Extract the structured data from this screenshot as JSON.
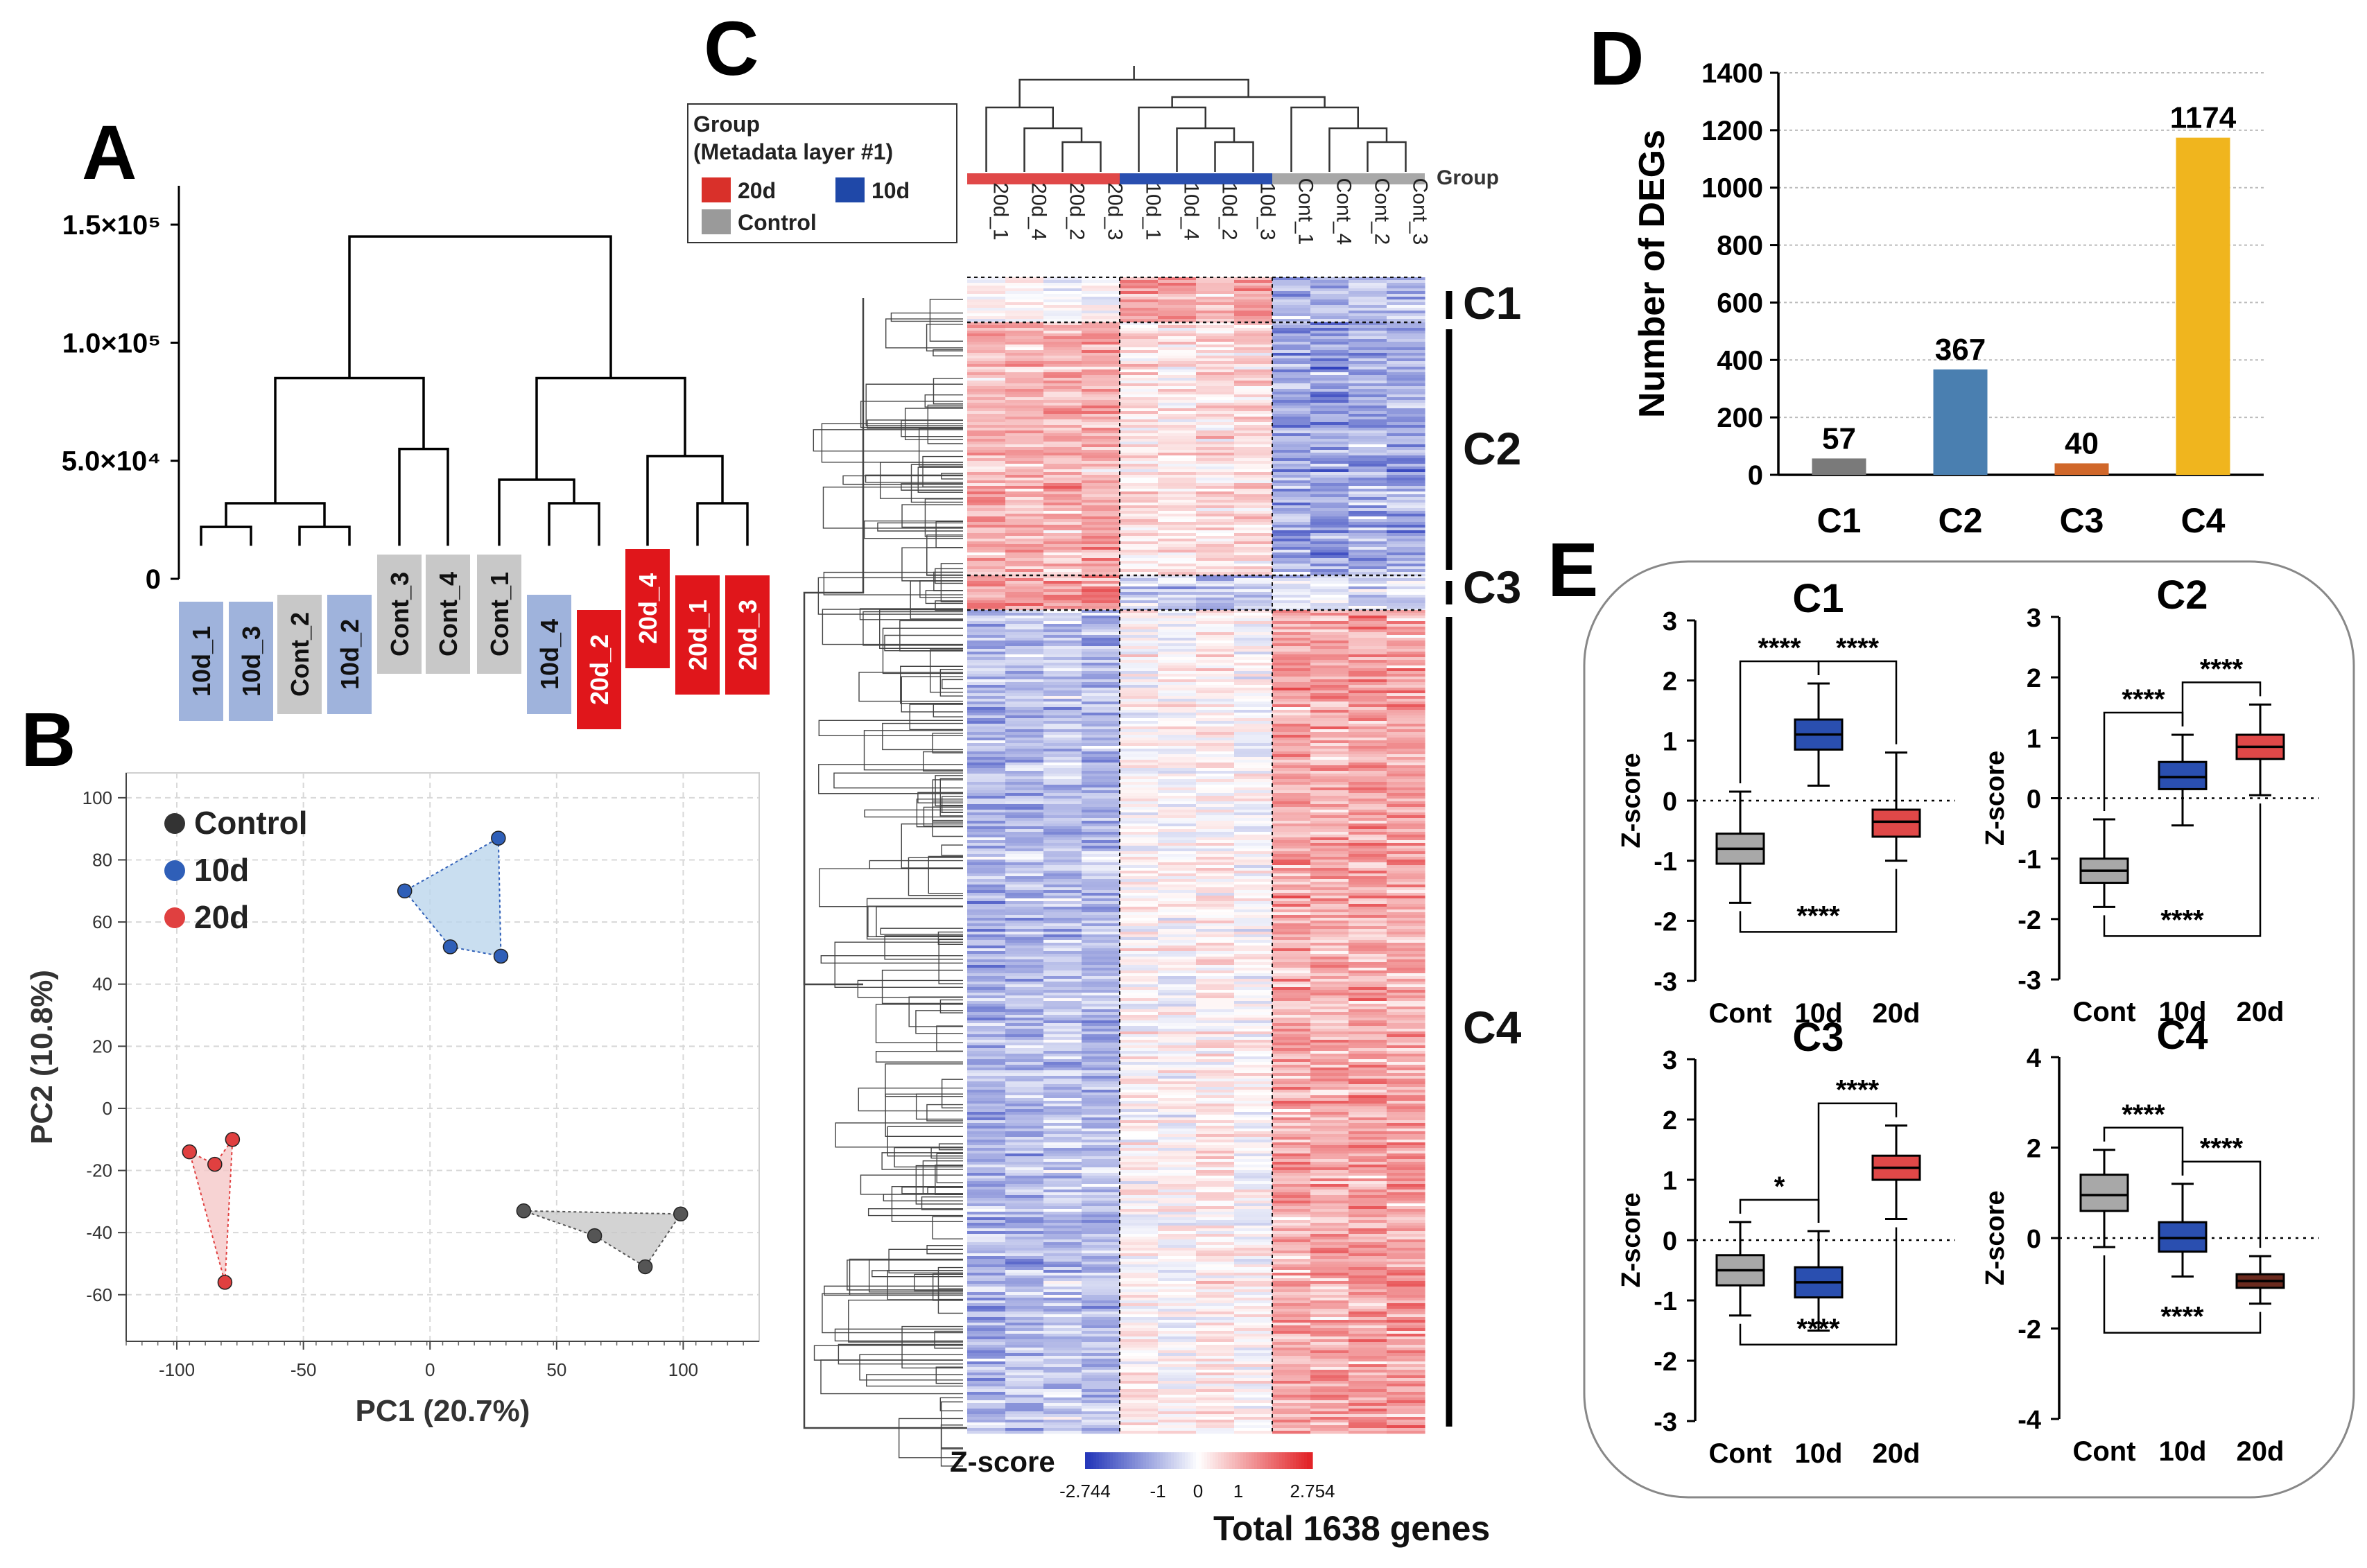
{
  "panels": {
    "A": {
      "letter": "A",
      "y_ticks": [
        {
          "label": "0",
          "value": 0
        },
        {
          "label": "5.0×10⁴",
          "value": 50000
        },
        {
          "label": "1.0×10⁵",
          "value": 100000
        },
        {
          "label": "1.5×10⁵",
          "value": 150000
        }
      ],
      "leaves": [
        {
          "label": "10d_1",
          "group": "10d"
        },
        {
          "label": "10d_3",
          "group": "10d"
        },
        {
          "label": "Cont_2",
          "group": "Control"
        },
        {
          "label": "10d_2",
          "group": "10d"
        },
        {
          "label": "Cont_3",
          "group": "Control"
        },
        {
          "label": "Cont_4",
          "group": "Control"
        },
        {
          "label": "Cont_1",
          "group": "Control"
        },
        {
          "label": "10d_4",
          "group": "10d"
        },
        {
          "label": "20d_2",
          "group": "20d"
        },
        {
          "label": "20d_4",
          "group": "20d"
        },
        {
          "label": "20d_1",
          "group": "20d"
        },
        {
          "label": "20d_3",
          "group": "20d"
        }
      ]
    },
    "B": {
      "letter": "B",
      "xlabel": "PC1 (20.7%)",
      "ylabel": "PC2 (10.8%)",
      "xlim": [
        -120,
        130
      ],
      "ylim": [
        -75,
        108
      ],
      "x_ticks": [
        -100,
        -50,
        0,
        50,
        100
      ],
      "y_ticks": [
        -60,
        -40,
        -20,
        0,
        20,
        40,
        60,
        80,
        100
      ],
      "legend": [
        {
          "label": "Control",
          "color": "#333333"
        },
        {
          "label": "10d",
          "color": "#2f5fb8"
        },
        {
          "label": "20d",
          "color": "#e04040"
        }
      ],
      "groups": [
        {
          "name": "Control",
          "color": "#555555",
          "fill": "#c8c8c8",
          "points": [
            [
              37,
              -33
            ],
            [
              65,
              -41
            ],
            [
              85,
              -51
            ],
            [
              99,
              -34
            ]
          ]
        },
        {
          "name": "10d",
          "color": "#2f5fb8",
          "fill": "#bcd6ec",
          "points": [
            [
              -10,
              70
            ],
            [
              27,
              87
            ],
            [
              28,
              49
            ],
            [
              8,
              52
            ]
          ]
        },
        {
          "name": "20d",
          "color": "#e04040",
          "fill": "#f5c8c8",
          "points": [
            [
              -95,
              -14
            ],
            [
              -78,
              -10
            ],
            [
              -85,
              -18
            ],
            [
              -81,
              -56
            ]
          ]
        }
      ]
    },
    "C": {
      "letter": "C",
      "legend_title": "Group",
      "legend_subtitle": "(Metadata layer #1)",
      "legend_items": [
        {
          "label": "20d",
          "color": "#d9302a"
        },
        {
          "label": "10d",
          "color": "#1f48a8"
        },
        {
          "label": "Control",
          "color": "#9a9a9a"
        }
      ],
      "group_track_label": "Group",
      "columns": [
        "20d_1",
        "20d_4",
        "20d_2",
        "20d_3",
        "10d_1",
        "10d_4",
        "10d_2",
        "10d_3",
        "Cont_1",
        "Cont_4",
        "Cont_2",
        "Cont_3"
      ],
      "clusters": [
        {
          "label": "C1",
          "genes": 57,
          "pattern": [
            0.1,
            0.2,
            0.0,
            0.1,
            1.2,
            1.2,
            1.1,
            1.2,
            -0.9,
            -0.8,
            -0.7,
            -0.8
          ]
        },
        {
          "label": "C2",
          "genes": 367,
          "pattern": [
            0.9,
            0.9,
            1.0,
            1.0,
            0.3,
            0.3,
            0.4,
            0.4,
            -1.2,
            -1.3,
            -1.1,
            -1.2
          ]
        },
        {
          "label": "C3",
          "genes": 40,
          "pattern": [
            1.2,
            1.1,
            1.3,
            1.4,
            -0.6,
            -0.7,
            -0.8,
            -0.6,
            -0.5,
            -0.4,
            -0.6,
            -0.5
          ]
        },
        {
          "label": "C4",
          "genes": 1174,
          "pattern": [
            -1.0,
            -0.9,
            -0.8,
            -0.9,
            0.1,
            0.0,
            0.2,
            0.0,
            1.1,
            1.0,
            1.2,
            1.1
          ]
        }
      ],
      "colorbar_title": "Z-score",
      "colorbar_ticks": [
        "-2.744",
        "-1",
        "0",
        "1",
        "2.754"
      ],
      "total_label": "Total 1638 genes"
    },
    "D": {
      "letter": "D"
    },
    "E": {
      "letter": "E",
      "ylabel": "Z-score",
      "categories": [
        "Cont",
        "10d",
        "20d"
      ],
      "box_colors": [
        "#a8a8a8",
        "#2a4fb0",
        "#e04848"
      ],
      "subplots": [
        {
          "title": "C1",
          "ylim": [
            -3,
            3
          ],
          "yticks": [
            -3,
            -2,
            -1,
            0,
            1,
            2,
            3
          ],
          "boxes": [
            {
              "min": -1.7,
              "q1": -1.05,
              "median": -0.8,
              "q3": -0.55,
              "max": 0.15
            },
            {
              "min": 0.25,
              "q1": 0.85,
              "median": 1.1,
              "q3": 1.35,
              "max": 1.95
            },
            {
              "min": -1.0,
              "q1": -0.6,
              "median": -0.35,
              "q3": -0.15,
              "max": 0.8
            }
          ],
          "brackets": [
            {
              "from": 0,
              "to": 1,
              "label": "****",
              "pos": "top"
            },
            {
              "from": 1,
              "to": 2,
              "label": "****",
              "pos": "top"
            },
            {
              "from": 0,
              "to": 2,
              "label": "****",
              "pos": "bottom"
            }
          ]
        },
        {
          "title": "C2",
          "ylim": [
            -3,
            3
          ],
          "yticks": [
            -3,
            -2,
            -1,
            0,
            1,
            2,
            3
          ],
          "boxes": [
            {
              "min": -1.8,
              "q1": -1.4,
              "median": -1.2,
              "q3": -1.0,
              "max": -0.35
            },
            {
              "min": -0.45,
              "q1": 0.15,
              "median": 0.35,
              "q3": 0.6,
              "max": 1.05
            },
            {
              "min": 0.05,
              "q1": 0.65,
              "median": 0.85,
              "q3": 1.05,
              "max": 1.55
            }
          ],
          "brackets": [
            {
              "from": 0,
              "to": 1,
              "label": "****",
              "pos": "top"
            },
            {
              "from": 1,
              "to": 2,
              "label": "****",
              "pos": "top"
            },
            {
              "from": 0,
              "to": 2,
              "label": "****",
              "pos": "bottom"
            }
          ]
        },
        {
          "title": "C3",
          "ylim": [
            -3,
            3
          ],
          "yticks": [
            -3,
            -2,
            -1,
            0,
            1,
            2,
            3
          ],
          "boxes": [
            {
              "min": -1.25,
              "q1": -0.75,
              "median": -0.5,
              "q3": -0.25,
              "max": 0.3
            },
            {
              "min": -1.5,
              "q1": -0.95,
              "median": -0.7,
              "q3": -0.45,
              "max": 0.15
            },
            {
              "min": 0.35,
              "q1": 1.0,
              "median": 1.2,
              "q3": 1.4,
              "max": 1.9
            }
          ],
          "brackets": [
            {
              "from": 0,
              "to": 1,
              "label": "*",
              "pos": "top"
            },
            {
              "from": 1,
              "to": 2,
              "label": "****",
              "pos": "top"
            },
            {
              "from": 0,
              "to": 2,
              "label": "****",
              "pos": "bottom"
            }
          ]
        },
        {
          "title": "C4",
          "ylim": [
            -4,
            4
          ],
          "yticks": [
            -4,
            -2,
            0,
            2,
            4
          ],
          "boxes": [
            {
              "min": -0.2,
              "q1": 0.6,
              "median": 0.95,
              "q3": 1.4,
              "max": 1.95
            },
            {
              "min": -0.85,
              "q1": -0.3,
              "median": 0.0,
              "q3": 0.35,
              "max": 1.2
            },
            {
              "min": -1.45,
              "q1": -1.1,
              "median": -0.95,
              "q3": -0.8,
              "max": -0.4
            }
          ],
          "brackets": [
            {
              "from": 0,
              "to": 1,
              "label": "****",
              "pos": "top"
            },
            {
              "from": 1,
              "to": 2,
              "label": "****",
              "pos": "top"
            },
            {
              "from": 0,
              "to": 2,
              "label": "****",
              "pos": "bottom"
            }
          ]
        }
      ]
    }
  },
  "chart_data": [
    {
      "type": "bar",
      "panel": "D",
      "title": "",
      "xlabel": "",
      "ylabel": "Number of DEGs",
      "categories": [
        "C1",
        "C2",
        "C3",
        "C4"
      ],
      "values": [
        57,
        367,
        40,
        1174
      ],
      "colors": [
        "#7a7a7a",
        "#4a7fb0",
        "#d0672a",
        "#f0b51e"
      ],
      "ylim": [
        0,
        1400
      ],
      "yticks": [
        0,
        200,
        400,
        600,
        800,
        1000,
        1200,
        1400
      ],
      "grid": true
    },
    {
      "type": "scatter",
      "panel": "B",
      "xlabel": "PC1 (20.7%)",
      "ylabel": "PC2 (10.8%)",
      "series": [
        {
          "name": "Control",
          "points": [
            [
              37,
              -33
            ],
            [
              65,
              -41
            ],
            [
              85,
              -51
            ],
            [
              99,
              -34
            ]
          ]
        },
        {
          "name": "10d",
          "points": [
            [
              -10,
              70
            ],
            [
              27,
              87
            ],
            [
              28,
              49
            ],
            [
              8,
              52
            ]
          ]
        },
        {
          "name": "20d",
          "points": [
            [
              -95,
              -14
            ],
            [
              -78,
              -10
            ],
            [
              -85,
              -18
            ],
            [
              -81,
              -56
            ]
          ]
        }
      ]
    },
    {
      "type": "heatmap",
      "panel": "C",
      "columns": [
        "20d_1",
        "20d_4",
        "20d_2",
        "20d_3",
        "10d_1",
        "10d_4",
        "10d_2",
        "10d_3",
        "Cont_1",
        "Cont_4",
        "Cont_2",
        "Cont_3"
      ],
      "row_clusters": [
        "C1",
        "C2",
        "C3",
        "C4"
      ],
      "zrange": [
        -2.744,
        2.754
      ],
      "total_genes": 1638
    }
  ]
}
